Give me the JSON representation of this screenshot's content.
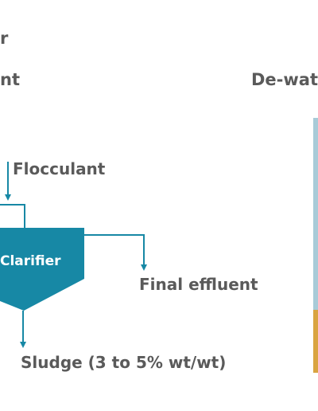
{
  "header": {
    "title_fragment": "r",
    "section_left_fragment": "nt",
    "section_right_fragment": "De-wat"
  },
  "diagram": {
    "flocculant_label": "Flocculant",
    "clarifier_label": "Clarifier",
    "final_effluent_label": "Final effluent",
    "sludge_label": "Sludge (3 to 5% wt/wt)"
  },
  "colors": {
    "clarifier_fill": "#1788a5",
    "line": "#1788a5",
    "text": "#5a5a5a",
    "bar_upper": "#a8cbd8",
    "bar_lower": "#d9a441"
  }
}
